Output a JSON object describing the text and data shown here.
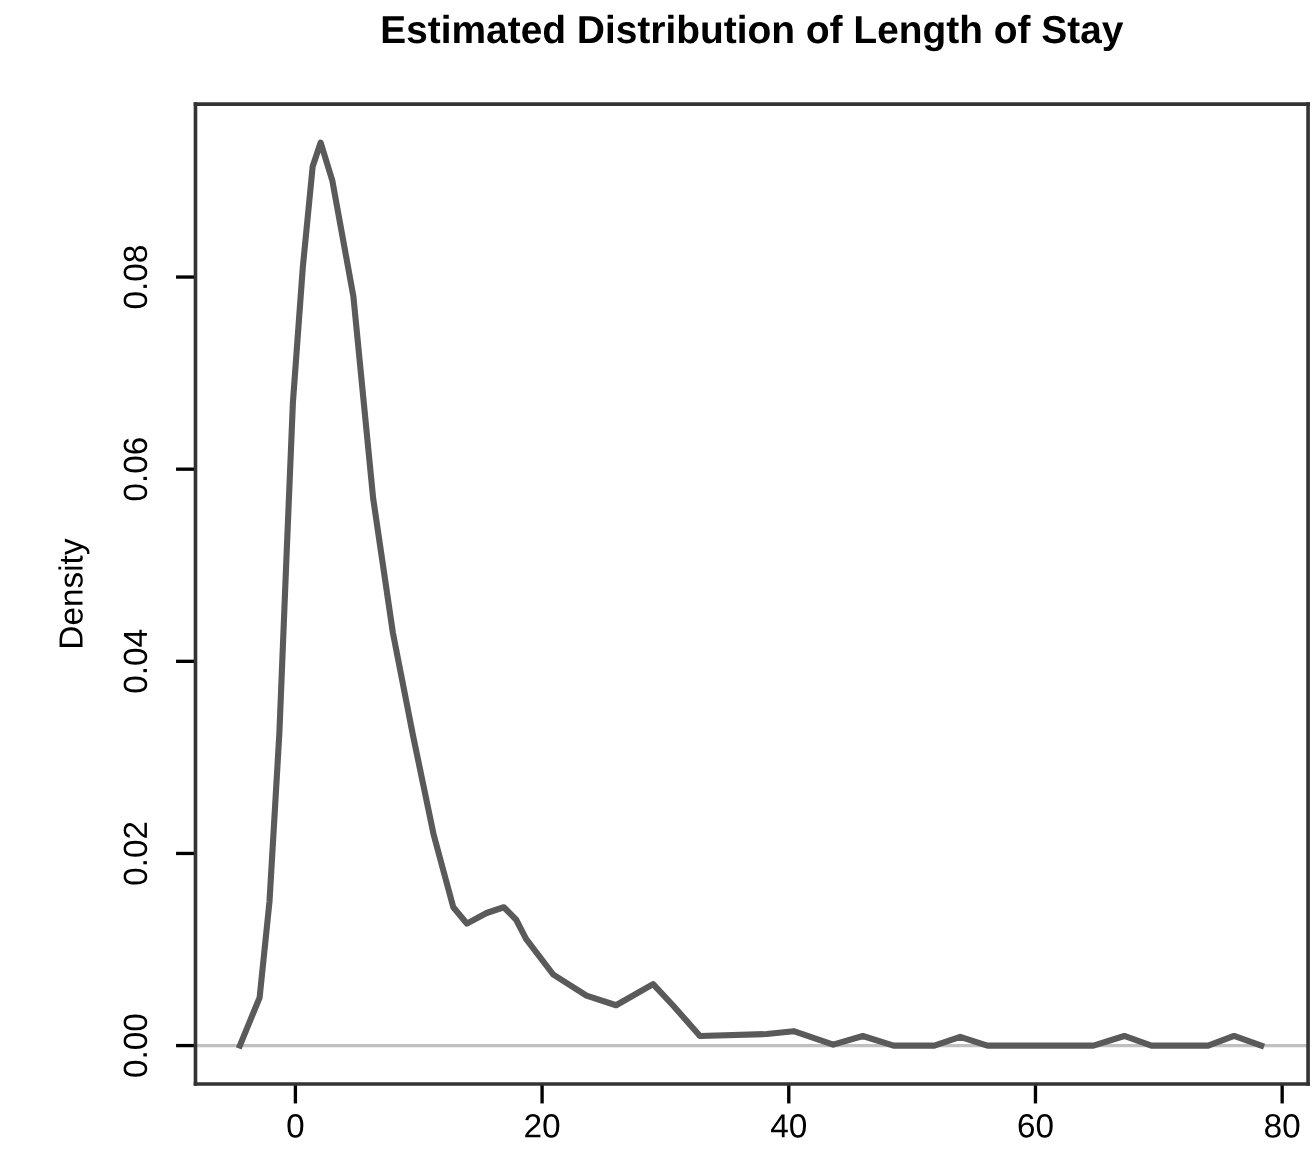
{
  "chart_data": {
    "type": "line",
    "title": "Estimated Distribution of Length of Stay",
    "ylabel": "Density",
    "x": [
      -4.5,
      -2.9,
      -2.1,
      -1.3,
      -0.75,
      -0.2,
      0.6,
      1.4,
      2.05,
      3.0,
      4.7,
      6.3,
      7.9,
      9.5,
      11.2,
      12.8,
      13.9,
      15.5,
      16.9,
      17.9,
      18.7,
      20.9,
      23.6,
      26.0,
      29.0,
      30.6,
      32.8,
      38.2,
      40.4,
      43.6,
      46.0,
      48.5,
      51.8,
      53.9,
      56.1,
      64.7,
      67.2,
      69.4,
      74.0,
      76.1,
      78.3
    ],
    "series": [
      {
        "color": "#5a5a5a",
        "values": [
          0.0,
          0.005,
          0.015,
          0.0325,
          0.05,
          0.067,
          0.081,
          0.0915,
          0.094,
          0.09,
          0.078,
          0.057,
          0.043,
          0.0325,
          0.022,
          0.0144,
          0.0127,
          0.0138,
          0.0144,
          0.0131,
          0.0111,
          0.0074,
          0.0052,
          0.0042,
          0.0064,
          0.0042,
          0.001,
          0.0012,
          0.0015,
          0.0001,
          0.001,
          0.0,
          0.0,
          0.0009,
          0.0,
          0.0,
          0.001,
          0.0,
          0.0,
          0.001,
          0.0
        ]
      }
    ],
    "xlim": [
      -8.1,
      82.1
    ],
    "ylim": [
      -0.004,
      0.098
    ],
    "xticks": [
      0,
      20,
      40,
      60,
      80
    ],
    "yticks": [
      {
        "value": 0,
        "label": "0.00"
      },
      {
        "value": 0.02,
        "label": "0.02"
      },
      {
        "value": 0.04,
        "label": "0.04"
      },
      {
        "value": 0.06,
        "label": "0.06"
      },
      {
        "value": 0.08,
        "label": "0.08"
      }
    ],
    "ref_lines": [
      {
        "axis": "y",
        "value": 0,
        "color": "#c0c0c0"
      }
    ],
    "grid": false,
    "legend": false,
    "marker": "none",
    "line_style": "solid"
  }
}
